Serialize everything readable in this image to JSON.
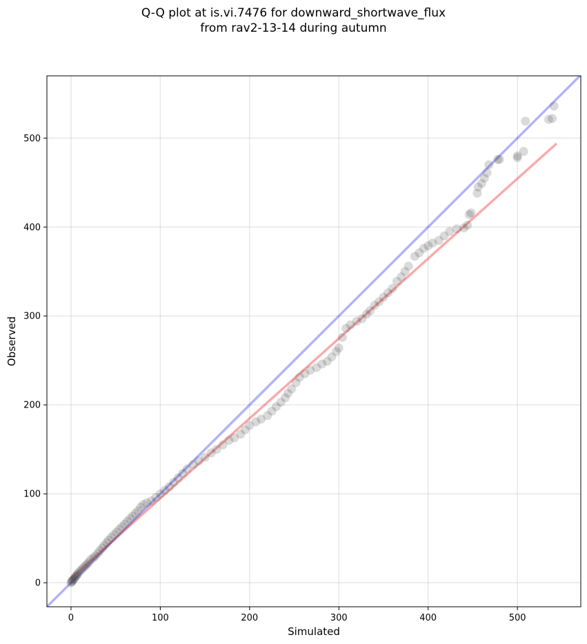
{
  "chart_data": {
    "type": "scatter",
    "title_line1": "Q-Q plot at is.vi.7476 for downward_shortwave_flux",
    "title_line2": "from rav2-13-14 during autumn",
    "xlabel": "Simulated",
    "ylabel": "Observed",
    "xlim": [
      -27,
      571
    ],
    "ylim": [
      -27,
      570
    ],
    "xticks": [
      0,
      100,
      200,
      300,
      400,
      500
    ],
    "yticks": [
      0,
      100,
      200,
      300,
      400,
      500
    ],
    "grid": true,
    "reference_line": {
      "name": "1:1",
      "color": "#0000ee",
      "alpha": 0.3
    },
    "fit_line": {
      "color": "#ee0000",
      "alpha": 0.33,
      "x": [
        0,
        544
      ],
      "y": [
        5,
        494
      ]
    },
    "point_color": "#333333",
    "points": [
      [
        0,
        0
      ],
      [
        1,
        1
      ],
      [
        1,
        2
      ],
      [
        2,
        3
      ],
      [
        3,
        4
      ],
      [
        4,
        5
      ],
      [
        5,
        7
      ],
      [
        6,
        8
      ],
      [
        7,
        9
      ],
      [
        8,
        11
      ],
      [
        10,
        13
      ],
      [
        12,
        15
      ],
      [
        14,
        17
      ],
      [
        16,
        19
      ],
      [
        18,
        21
      ],
      [
        20,
        23
      ],
      [
        22,
        26
      ],
      [
        25,
        28
      ],
      [
        27,
        30
      ],
      [
        30,
        33
      ],
      [
        32,
        36
      ],
      [
        35,
        39
      ],
      [
        37,
        42
      ],
      [
        40,
        45
      ],
      [
        42,
        48
      ],
      [
        45,
        51
      ],
      [
        48,
        54
      ],
      [
        51,
        57
      ],
      [
        54,
        60
      ],
      [
        57,
        63
      ],
      [
        60,
        66
      ],
      [
        63,
        69
      ],
      [
        66,
        72
      ],
      [
        69,
        75
      ],
      [
        72,
        78
      ],
      [
        75,
        81
      ],
      [
        78,
        85
      ],
      [
        81,
        88
      ],
      [
        85,
        90
      ],
      [
        90,
        92
      ],
      [
        95,
        96
      ],
      [
        100,
        100
      ],
      [
        105,
        104
      ],
      [
        110,
        108
      ],
      [
        115,
        113
      ],
      [
        120,
        118
      ],
      [
        125,
        123
      ],
      [
        130,
        128
      ],
      [
        137,
        133
      ],
      [
        143,
        137
      ],
      [
        150,
        141
      ],
      [
        157,
        146
      ],
      [
        163,
        150
      ],
      [
        170,
        155
      ],
      [
        177,
        160
      ],
      [
        183,
        163
      ],
      [
        190,
        167
      ],
      [
        195,
        172
      ],
      [
        200,
        177
      ],
      [
        207,
        181
      ],
      [
        213,
        184
      ],
      [
        220,
        188
      ],
      [
        225,
        193
      ],
      [
        230,
        198
      ],
      [
        235,
        203
      ],
      [
        240,
        208
      ],
      [
        243,
        213
      ],
      [
        247,
        218
      ],
      [
        252,
        225
      ],
      [
        256,
        231
      ],
      [
        262,
        235
      ],
      [
        268,
        239
      ],
      [
        275,
        242
      ],
      [
        281,
        246
      ],
      [
        287,
        249
      ],
      [
        292,
        254
      ],
      [
        297,
        260
      ],
      [
        300,
        264
      ],
      [
        304,
        276
      ],
      [
        308,
        286
      ],
      [
        313,
        290
      ],
      [
        320,
        294
      ],
      [
        326,
        297
      ],
      [
        331,
        302
      ],
      [
        335,
        306
      ],
      [
        340,
        312
      ],
      [
        345,
        316
      ],
      [
        350,
        321
      ],
      [
        355,
        326
      ],
      [
        360,
        331
      ],
      [
        365,
        339
      ],
      [
        370,
        344
      ],
      [
        374,
        350
      ],
      [
        378,
        356
      ],
      [
        385,
        367
      ],
      [
        390,
        371
      ],
      [
        395,
        376
      ],
      [
        400,
        379
      ],
      [
        405,
        382
      ],
      [
        412,
        385
      ],
      [
        418,
        390
      ],
      [
        424,
        395
      ],
      [
        432,
        398
      ],
      [
        440,
        399
      ],
      [
        444,
        402
      ],
      [
        446,
        414
      ],
      [
        448,
        416
      ],
      [
        455,
        438
      ],
      [
        456,
        445
      ],
      [
        460,
        449
      ],
      [
        463,
        455
      ],
      [
        466,
        461
      ],
      [
        468,
        470
      ],
      [
        478,
        476
      ],
      [
        480,
        476
      ],
      [
        500,
        478
      ],
      [
        500,
        480
      ],
      [
        507,
        485
      ],
      [
        509,
        519
      ],
      [
        535,
        521
      ],
      [
        539,
        522
      ],
      [
        541,
        536
      ]
    ]
  }
}
